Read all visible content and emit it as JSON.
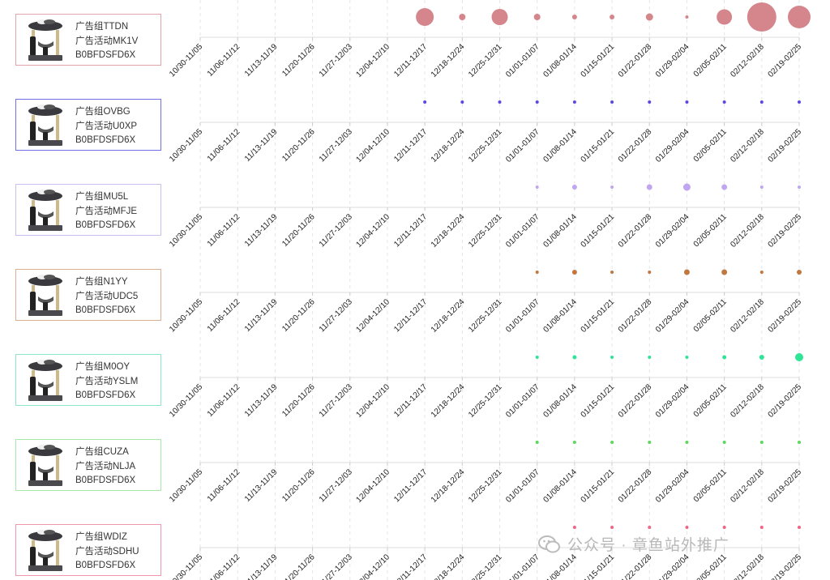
{
  "categories": [
    "10/30-11/05",
    "11/06-11/12",
    "11/13-11/19",
    "11/20-11/26",
    "11/27-12/03",
    "12/04-12/10",
    "12/11-12/17",
    "12/18-12/24",
    "12/25-12/31",
    "01/01-01/07",
    "01/08-01/14",
    "01/15-01/21",
    "01/22-01/28",
    "01/29-02/04",
    "02/05-02/11",
    "02/12-02/18",
    "02/19-02/25"
  ],
  "chart_data": [
    {
      "type": "scatter",
      "group": "广告组TTDN",
      "campaign": "广告活动MK1V",
      "asin": "B0BFDSFD6X",
      "color": "#d4868c",
      "border": "#e2a4ab",
      "values": [
        null,
        null,
        null,
        null,
        null,
        null,
        121,
        16,
        100,
        16,
        9,
        9,
        20,
        4,
        90,
        324,
        196
      ]
    },
    {
      "type": "scatter",
      "group": "广告组OVBG",
      "campaign": "广告活动U0XP",
      "asin": "B0BFDSFD6X",
      "color": "#5a48e0",
      "border": "#7070e8",
      "values": [
        null,
        null,
        null,
        null,
        null,
        null,
        4,
        4,
        4,
        4,
        4,
        4,
        4,
        4,
        4,
        4,
        4
      ]
    },
    {
      "type": "scatter",
      "group": "广告组MU5L",
      "campaign": "广告活动MFJE",
      "asin": "B0BFDSFD6X",
      "color": "#c0a6f0",
      "border": "#cbbcf2",
      "values": [
        null,
        null,
        null,
        null,
        null,
        null,
        null,
        null,
        null,
        4,
        9,
        4,
        12,
        20,
        12,
        4,
        4
      ]
    },
    {
      "type": "scatter",
      "group": "广告组N1YY",
      "campaign": "广告活动UDC5",
      "asin": "B0BFDSFD6X",
      "color": "#c07840",
      "border": "#dbae90",
      "values": [
        null,
        null,
        null,
        null,
        null,
        null,
        null,
        null,
        null,
        4,
        9,
        4,
        4,
        12,
        12,
        4,
        9
      ]
    },
    {
      "type": "scatter",
      "group": "广告组M0OY",
      "campaign": "广告活动YSLM",
      "asin": "B0BFDSFD6X",
      "color": "#2ee596",
      "border": "#8ae8c4",
      "values": [
        null,
        null,
        null,
        null,
        null,
        null,
        null,
        null,
        null,
        4,
        6,
        4,
        4,
        4,
        6,
        9,
        25
      ]
    },
    {
      "type": "scatter",
      "group": "广告组CUZA",
      "campaign": "广告活动NLJA",
      "asin": "B0BFDSFD6X",
      "color": "#5cd85c",
      "border": "#a6e8a8",
      "values": [
        null,
        null,
        null,
        null,
        null,
        null,
        null,
        null,
        null,
        4,
        4,
        4,
        4,
        4,
        4,
        4,
        4
      ]
    },
    {
      "type": "scatter",
      "group": "广告组WDIZ",
      "campaign": "广告活动SDHU",
      "asin": "B0BFDSFD6X",
      "color": "#f06484",
      "border": "#f196ac",
      "values": [
        null,
        null,
        null,
        null,
        null,
        null,
        null,
        null,
        null,
        null,
        4,
        4,
        4,
        4,
        4,
        4,
        4
      ]
    }
  ],
  "watermark": "公众号 · 章鱼站外推广"
}
